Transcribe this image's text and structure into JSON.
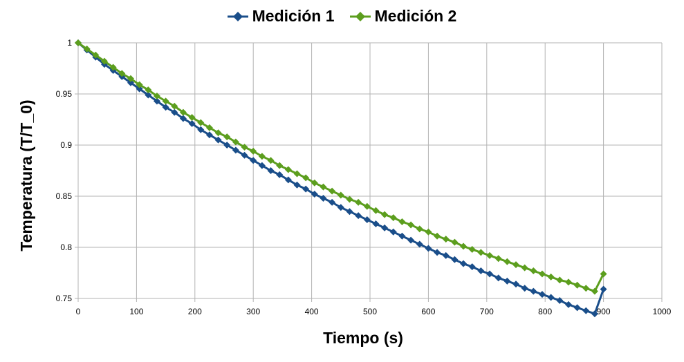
{
  "chart_data": {
    "type": "line",
    "title": "",
    "xlabel": "Tiempo (s)",
    "ylabel": "Temperatura (T/T_0)",
    "xlim": [
      0,
      1000
    ],
    "ylim": [
      0.75,
      1
    ],
    "x_ticks": [
      "0",
      "100",
      "200",
      "300",
      "400",
      "500",
      "600",
      "700",
      "800",
      "900",
      "1000"
    ],
    "y_ticks": [
      "0.75",
      "0.8",
      "0.85",
      "0.9",
      "0.95",
      "1"
    ],
    "grid": true,
    "legend_position": "top",
    "x": [
      0,
      15,
      30,
      45,
      60,
      75,
      90,
      105,
      120,
      135,
      150,
      165,
      180,
      195,
      210,
      225,
      240,
      255,
      270,
      285,
      300,
      315,
      330,
      345,
      360,
      375,
      390,
      405,
      420,
      435,
      450,
      465,
      480,
      495,
      510,
      525,
      540,
      555,
      570,
      585,
      600,
      615,
      630,
      645,
      660,
      675,
      690,
      705,
      720,
      735,
      750,
      765,
      780,
      795,
      810,
      825,
      840,
      855,
      870,
      885,
      900
    ],
    "series": [
      {
        "name": "Medición 1",
        "color": "#1a4e8a",
        "marker": "diamond",
        "values": [
          1.0,
          0.993,
          0.986,
          0.979,
          0.973,
          0.967,
          0.961,
          0.955,
          0.949,
          0.943,
          0.937,
          0.932,
          0.926,
          0.921,
          0.915,
          0.91,
          0.905,
          0.9,
          0.895,
          0.89,
          0.885,
          0.88,
          0.875,
          0.871,
          0.866,
          0.861,
          0.857,
          0.852,
          0.848,
          0.844,
          0.839,
          0.835,
          0.831,
          0.827,
          0.823,
          0.819,
          0.815,
          0.811,
          0.807,
          0.803,
          0.799,
          0.795,
          0.792,
          0.788,
          0.784,
          0.781,
          0.777,
          0.774,
          0.77,
          0.767,
          0.764,
          0.76,
          0.757,
          0.754,
          0.751,
          0.748,
          0.744,
          0.741,
          0.738,
          0.735,
          0.759
        ]
      },
      {
        "name": "Medición 2",
        "color": "#5c9e1e",
        "marker": "diamond",
        "values": [
          1.0,
          0.994,
          0.988,
          0.982,
          0.976,
          0.97,
          0.965,
          0.959,
          0.954,
          0.948,
          0.943,
          0.938,
          0.932,
          0.927,
          0.922,
          0.917,
          0.912,
          0.908,
          0.903,
          0.898,
          0.894,
          0.889,
          0.885,
          0.88,
          0.876,
          0.872,
          0.868,
          0.863,
          0.859,
          0.855,
          0.851,
          0.847,
          0.844,
          0.84,
          0.836,
          0.832,
          0.829,
          0.825,
          0.822,
          0.818,
          0.815,
          0.811,
          0.808,
          0.805,
          0.801,
          0.798,
          0.795,
          0.792,
          0.789,
          0.786,
          0.783,
          0.78,
          0.777,
          0.774,
          0.771,
          0.768,
          0.766,
          0.763,
          0.76,
          0.757,
          0.774
        ]
      }
    ]
  }
}
